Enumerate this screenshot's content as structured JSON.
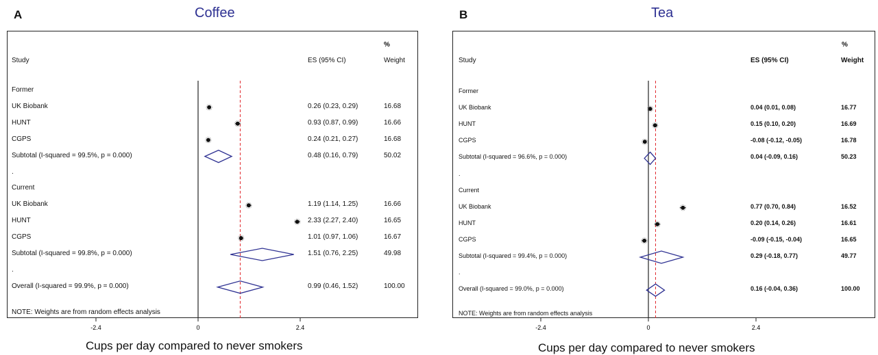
{
  "chart_data": [
    {
      "type": "forest",
      "panel_letter": "A",
      "title": "Coffee",
      "header": {
        "study": "Study",
        "es": "ES (95% CI)",
        "weight_pct": "%",
        "weight": "Weight"
      },
      "xlabel": "Cups per day compared to never smokers",
      "xticks": [
        {
          "value": -2.4,
          "label": "-2.4"
        },
        {
          "value": 0,
          "label": "0"
        },
        {
          "value": 2.4,
          "label": "2.4"
        }
      ],
      "reference_line": 0,
      "overall_line": 0.99,
      "note": "NOTE: Weights are from random effects analysis",
      "rows": [
        {
          "kind": "group",
          "label": "Former"
        },
        {
          "kind": "study",
          "label": "UK Biobank",
          "es": 0.26,
          "lo": 0.23,
          "hi": 0.29,
          "es_text": "0.26 (0.23, 0.29)",
          "weight": "16.68"
        },
        {
          "kind": "study",
          "label": "HUNT",
          "es": 0.93,
          "lo": 0.87,
          "hi": 0.99,
          "es_text": "0.93 (0.87, 0.99)",
          "weight": "16.66"
        },
        {
          "kind": "study",
          "label": "CGPS",
          "es": 0.24,
          "lo": 0.21,
          "hi": 0.27,
          "es_text": "0.24 (0.21, 0.27)",
          "weight": "16.68"
        },
        {
          "kind": "subtotal",
          "label": "Subtotal  (I-squared = 99.5%, p = 0.000)",
          "es": 0.48,
          "lo": 0.16,
          "hi": 0.79,
          "es_text": "0.48 (0.16, 0.79)",
          "weight": "50.02"
        },
        {
          "kind": "spacer",
          "label": "."
        },
        {
          "kind": "group",
          "label": "Current"
        },
        {
          "kind": "study",
          "label": "UK Biobank",
          "es": 1.19,
          "lo": 1.14,
          "hi": 1.25,
          "es_text": "1.19 (1.14, 1.25)",
          "weight": "16.66"
        },
        {
          "kind": "study",
          "label": "HUNT",
          "es": 2.33,
          "lo": 2.27,
          "hi": 2.4,
          "es_text": "2.33 (2.27, 2.40)",
          "weight": "16.65"
        },
        {
          "kind": "study",
          "label": "CGPS",
          "es": 1.01,
          "lo": 0.97,
          "hi": 1.06,
          "es_text": "1.01 (0.97, 1.06)",
          "weight": "16.67"
        },
        {
          "kind": "subtotal",
          "label": "Subtotal  (I-squared = 99.8%, p = 0.000)",
          "es": 1.51,
          "lo": 0.76,
          "hi": 2.25,
          "es_text": "1.51 (0.76, 2.25)",
          "weight": "49.98"
        },
        {
          "kind": "spacer",
          "label": "."
        },
        {
          "kind": "overall",
          "label": "Overall  (I-squared = 99.9%, p = 0.000)",
          "es": 0.99,
          "lo": 0.46,
          "hi": 1.52,
          "es_text": "0.99 (0.46, 1.52)",
          "weight": "100.00"
        }
      ]
    },
    {
      "type": "forest",
      "panel_letter": "B",
      "title": "Tea",
      "header": {
        "study": "Study",
        "es": "ES (95% CI)",
        "weight_pct": "%",
        "weight": "Weight"
      },
      "xlabel": "Cups per day compared to never smokers",
      "xticks": [
        {
          "value": -2.4,
          "label": "-2.4"
        },
        {
          "value": 0,
          "label": "0"
        },
        {
          "value": 2.4,
          "label": "2.4"
        }
      ],
      "reference_line": 0,
      "overall_line": 0.16,
      "note": "NOTE: Weights are from random effects analysis",
      "rows": [
        {
          "kind": "group",
          "label": "Former"
        },
        {
          "kind": "study",
          "label": "UK Biobank",
          "es": 0.04,
          "lo": 0.01,
          "hi": 0.08,
          "es_text": "0.04 (0.01, 0.08)",
          "weight": "16.77"
        },
        {
          "kind": "study",
          "label": "HUNT",
          "es": 0.15,
          "lo": 0.1,
          "hi": 0.2,
          "es_text": "0.15 (0.10, 0.20)",
          "weight": "16.69"
        },
        {
          "kind": "study",
          "label": "CGPS",
          "es": -0.08,
          "lo": -0.12,
          "hi": -0.05,
          "es_text": "-0.08 (-0.12, -0.05)",
          "weight": "16.78"
        },
        {
          "kind": "subtotal",
          "label": "Subtotal  (I-squared = 96.6%, p = 0.000)",
          "es": 0.04,
          "lo": -0.09,
          "hi": 0.16,
          "es_text": "0.04 (-0.09, 0.16)",
          "weight": "50.23"
        },
        {
          "kind": "spacer",
          "label": "."
        },
        {
          "kind": "group",
          "label": "Current"
        },
        {
          "kind": "study",
          "label": "UK Biobank",
          "es": 0.77,
          "lo": 0.7,
          "hi": 0.84,
          "es_text": "0.77 (0.70, 0.84)",
          "weight": "16.52"
        },
        {
          "kind": "study",
          "label": "HUNT",
          "es": 0.2,
          "lo": 0.14,
          "hi": 0.26,
          "es_text": "0.20 (0.14, 0.26)",
          "weight": "16.61"
        },
        {
          "kind": "study",
          "label": "CGPS",
          "es": -0.09,
          "lo": -0.15,
          "hi": -0.04,
          "es_text": "-0.09 (-0.15, -0.04)",
          "weight": "16.65"
        },
        {
          "kind": "subtotal",
          "label": "Subtotal  (I-squared = 99.4%, p = 0.000)",
          "es": 0.29,
          "lo": -0.18,
          "hi": 0.77,
          "es_text": "0.29 (-0.18, 0.77)",
          "weight": "49.77"
        },
        {
          "kind": "spacer",
          "label": "."
        },
        {
          "kind": "overall",
          "label": "Overall  (I-squared = 99.0%, p = 0.000)",
          "es": 0.16,
          "lo": -0.04,
          "hi": 0.36,
          "es_text": "0.16 (-0.04, 0.36)",
          "weight": "100.00"
        }
      ]
    }
  ],
  "colors": {
    "title": "#2e3192",
    "diamond": "#2e3192",
    "dashed_line": "#e0262b",
    "axis": "#222222",
    "marker": "#111111"
  }
}
